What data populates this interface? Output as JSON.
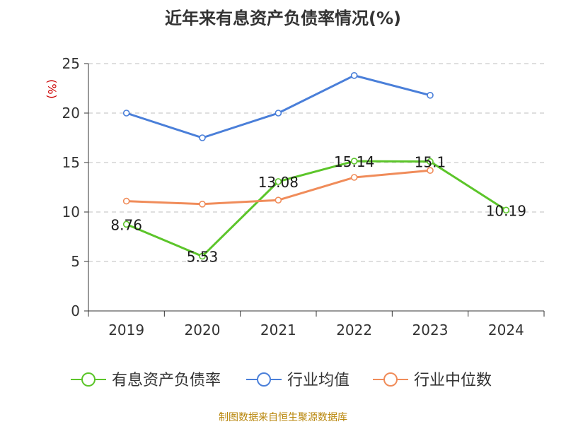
{
  "chart_data": {
    "type": "line",
    "title": "近年来有息资产负债率情况(%)",
    "ylabel": "(%)",
    "xlabel": "",
    "categories": [
      "2019",
      "2020",
      "2021",
      "2022",
      "2023",
      "2024"
    ],
    "ylim": [
      0,
      25
    ],
    "yticks": [
      0,
      5,
      10,
      15,
      20,
      25
    ],
    "grid": true,
    "legend_position": "bottom",
    "series": [
      {
        "name": "有息资产负债率",
        "color": "#5cc52a",
        "values": [
          8.76,
          5.53,
          13.08,
          15.14,
          15.1,
          10.19
        ],
        "labels": [
          "8.76",
          "5.53",
          "13.08",
          "15.14",
          "15.1",
          "10.19"
        ]
      },
      {
        "name": "行业均值",
        "color": "#4a7fd9",
        "values": [
          20.0,
          17.5,
          20.0,
          23.8,
          21.8,
          null
        ]
      },
      {
        "name": "行业中位数",
        "color": "#f08c5a",
        "values": [
          11.1,
          10.8,
          11.2,
          13.5,
          14.2,
          null
        ]
      }
    ]
  },
  "source_note": "制图数据来自恒生聚源数据库",
  "colors": {
    "axis": "#333333",
    "grid": "#cccccc",
    "ylabel": "#cc0000",
    "source": "#b8860b"
  }
}
